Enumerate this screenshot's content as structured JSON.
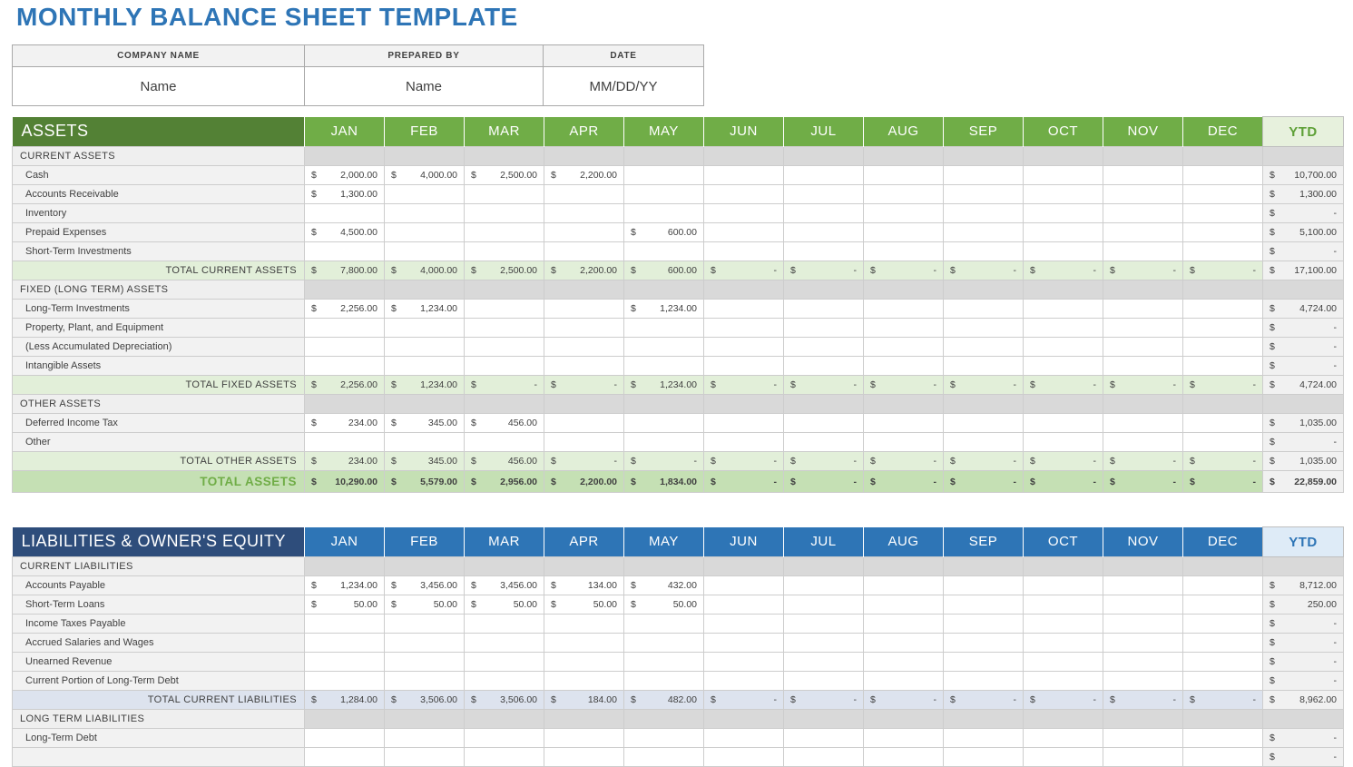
{
  "page_title": "MONTHLY BALANCE SHEET TEMPLATE",
  "info_table": {
    "headers": [
      "COMPANY NAME",
      "PREPARED BY",
      "DATE"
    ],
    "values": [
      "Name",
      "Name",
      "MM/DD/YY"
    ]
  },
  "months": [
    "JAN",
    "FEB",
    "MAR",
    "APR",
    "MAY",
    "JUN",
    "JUL",
    "AUG",
    "SEP",
    "OCT",
    "NOV",
    "DEC"
  ],
  "ytd_label": "YTD",
  "title_color": "#2E75B6",
  "assets": {
    "title": "ASSETS",
    "colors": {
      "header_bg": "#538135",
      "month_bg": "#70AD47",
      "ytd_header_bg": "#E7F1DD",
      "ytd_header_text": "#5EA037",
      "total_bg": "#E2EFD9",
      "grand_bg": "#C5E0B4",
      "grand_label": "#70AD47"
    },
    "rows": [
      {
        "type": "subheader",
        "label": "CURRENT ASSETS"
      },
      {
        "type": "data",
        "label": "Cash",
        "values": [
          "2,000.00",
          "4,000.00",
          "2,500.00",
          "2,200.00",
          "",
          "",
          "",
          "",
          "",
          "",
          "",
          ""
        ],
        "ytd": "10,700.00"
      },
      {
        "type": "data",
        "label": "Accounts Receivable",
        "values": [
          "1,300.00",
          "",
          "",
          "",
          "",
          "",
          "",
          "",
          "",
          "",
          "",
          ""
        ],
        "ytd": "1,300.00"
      },
      {
        "type": "data",
        "label": "Inventory",
        "values": [
          "",
          "",
          "",
          "",
          "",
          "",
          "",
          "",
          "",
          "",
          "",
          ""
        ],
        "ytd": "-"
      },
      {
        "type": "data",
        "label": "Prepaid Expenses",
        "values": [
          "4,500.00",
          "",
          "",
          "",
          "600.00",
          "",
          "",
          "",
          "",
          "",
          "",
          ""
        ],
        "ytd": "5,100.00"
      },
      {
        "type": "data",
        "label": "Short-Term Investments",
        "values": [
          "",
          "",
          "",
          "",
          "",
          "",
          "",
          "",
          "",
          "",
          "",
          ""
        ],
        "ytd": "-"
      },
      {
        "type": "total",
        "label": "TOTAL CURRENT ASSETS",
        "values": [
          "7,800.00",
          "4,000.00",
          "2,500.00",
          "2,200.00",
          "600.00",
          "-",
          "-",
          "-",
          "-",
          "-",
          "-",
          "-"
        ],
        "ytd": "17,100.00"
      },
      {
        "type": "subheader",
        "label": "FIXED (LONG TERM) ASSETS"
      },
      {
        "type": "data",
        "label": "Long-Term Investments",
        "values": [
          "2,256.00",
          "1,234.00",
          "",
          "",
          "1,234.00",
          "",
          "",
          "",
          "",
          "",
          "",
          ""
        ],
        "ytd": "4,724.00"
      },
      {
        "type": "data",
        "label": "Property, Plant, and Equipment",
        "values": [
          "",
          "",
          "",
          "",
          "",
          "",
          "",
          "",
          "",
          "",
          "",
          ""
        ],
        "ytd": "-"
      },
      {
        "type": "data",
        "label": "(Less Accumulated Depreciation)",
        "values": [
          "",
          "",
          "",
          "",
          "",
          "",
          "",
          "",
          "",
          "",
          "",
          ""
        ],
        "ytd": "-"
      },
      {
        "type": "data",
        "label": "Intangible Assets",
        "values": [
          "",
          "",
          "",
          "",
          "",
          "",
          "",
          "",
          "",
          "",
          "",
          ""
        ],
        "ytd": "-"
      },
      {
        "type": "total",
        "label": "TOTAL FIXED ASSETS",
        "values": [
          "2,256.00",
          "1,234.00",
          "-",
          "-",
          "1,234.00",
          "-",
          "-",
          "-",
          "-",
          "-",
          "-",
          "-"
        ],
        "ytd": "4,724.00"
      },
      {
        "type": "subheader",
        "label": "OTHER ASSETS"
      },
      {
        "type": "data",
        "label": "Deferred Income Tax",
        "values": [
          "234.00",
          "345.00",
          "456.00",
          "",
          "",
          "",
          "",
          "",
          "",
          "",
          "",
          ""
        ],
        "ytd": "1,035.00"
      },
      {
        "type": "data",
        "label": "Other",
        "values": [
          "",
          "",
          "",
          "",
          "",
          "",
          "",
          "",
          "",
          "",
          "",
          ""
        ],
        "ytd": "-"
      },
      {
        "type": "total",
        "label": "TOTAL OTHER ASSETS",
        "values": [
          "234.00",
          "345.00",
          "456.00",
          "-",
          "-",
          "-",
          "-",
          "-",
          "-",
          "-",
          "-",
          "-"
        ],
        "ytd": "1,035.00"
      },
      {
        "type": "grand",
        "label": "TOTAL ASSETS",
        "values": [
          "10,290.00",
          "5,579.00",
          "2,956.00",
          "2,200.00",
          "1,834.00",
          "-",
          "-",
          "-",
          "-",
          "-",
          "-",
          "-"
        ],
        "ytd": "22,859.00"
      }
    ]
  },
  "liabilities": {
    "title": "LIABILITIES & OWNER'S EQUITY",
    "colors": {
      "header_bg": "#2E4D7B",
      "month_bg": "#2E75B6",
      "ytd_header_bg": "#DEEBF7",
      "ytd_header_text": "#2E75B6",
      "total_bg": "#DDE3EE",
      "grand_bg": "#B4C7E7",
      "grand_label": "#2E75B6"
    },
    "rows": [
      {
        "type": "subheader",
        "label": "CURRENT LIABILITIES"
      },
      {
        "type": "data",
        "label": "Accounts Payable",
        "values": [
          "1,234.00",
          "3,456.00",
          "3,456.00",
          "134.00",
          "432.00",
          "",
          "",
          "",
          "",
          "",
          "",
          ""
        ],
        "ytd": "8,712.00"
      },
      {
        "type": "data",
        "label": "Short-Term Loans",
        "values": [
          "50.00",
          "50.00",
          "50.00",
          "50.00",
          "50.00",
          "",
          "",
          "",
          "",
          "",
          "",
          ""
        ],
        "ytd": "250.00"
      },
      {
        "type": "data",
        "label": "Income Taxes Payable",
        "values": [
          "",
          "",
          "",
          "",
          "",
          "",
          "",
          "",
          "",
          "",
          "",
          ""
        ],
        "ytd": "-"
      },
      {
        "type": "data",
        "label": "Accrued Salaries and Wages",
        "values": [
          "",
          "",
          "",
          "",
          "",
          "",
          "",
          "",
          "",
          "",
          "",
          ""
        ],
        "ytd": "-"
      },
      {
        "type": "data",
        "label": "Unearned Revenue",
        "values": [
          "",
          "",
          "",
          "",
          "",
          "",
          "",
          "",
          "",
          "",
          "",
          ""
        ],
        "ytd": "-"
      },
      {
        "type": "data",
        "label": "Current Portion of Long-Term Debt",
        "values": [
          "",
          "",
          "",
          "",
          "",
          "",
          "",
          "",
          "",
          "",
          "",
          ""
        ],
        "ytd": "-"
      },
      {
        "type": "total",
        "label": "TOTAL CURRENT LIABILITIES",
        "values": [
          "1,284.00",
          "3,506.00",
          "3,506.00",
          "184.00",
          "482.00",
          "-",
          "-",
          "-",
          "-",
          "-",
          "-",
          "-"
        ],
        "ytd": "8,962.00"
      },
      {
        "type": "subheader",
        "label": "LONG TERM LIABILITIES"
      },
      {
        "type": "data",
        "label": "Long-Term Debt",
        "values": [
          "",
          "",
          "",
          "",
          "",
          "",
          "",
          "",
          "",
          "",
          "",
          ""
        ],
        "ytd": "-"
      },
      {
        "type": "data",
        "label": "",
        "values": [
          "",
          "",
          "",
          "",
          "",
          "",
          "",
          "",
          "",
          "",
          "",
          ""
        ],
        "ytd": "-"
      }
    ]
  }
}
